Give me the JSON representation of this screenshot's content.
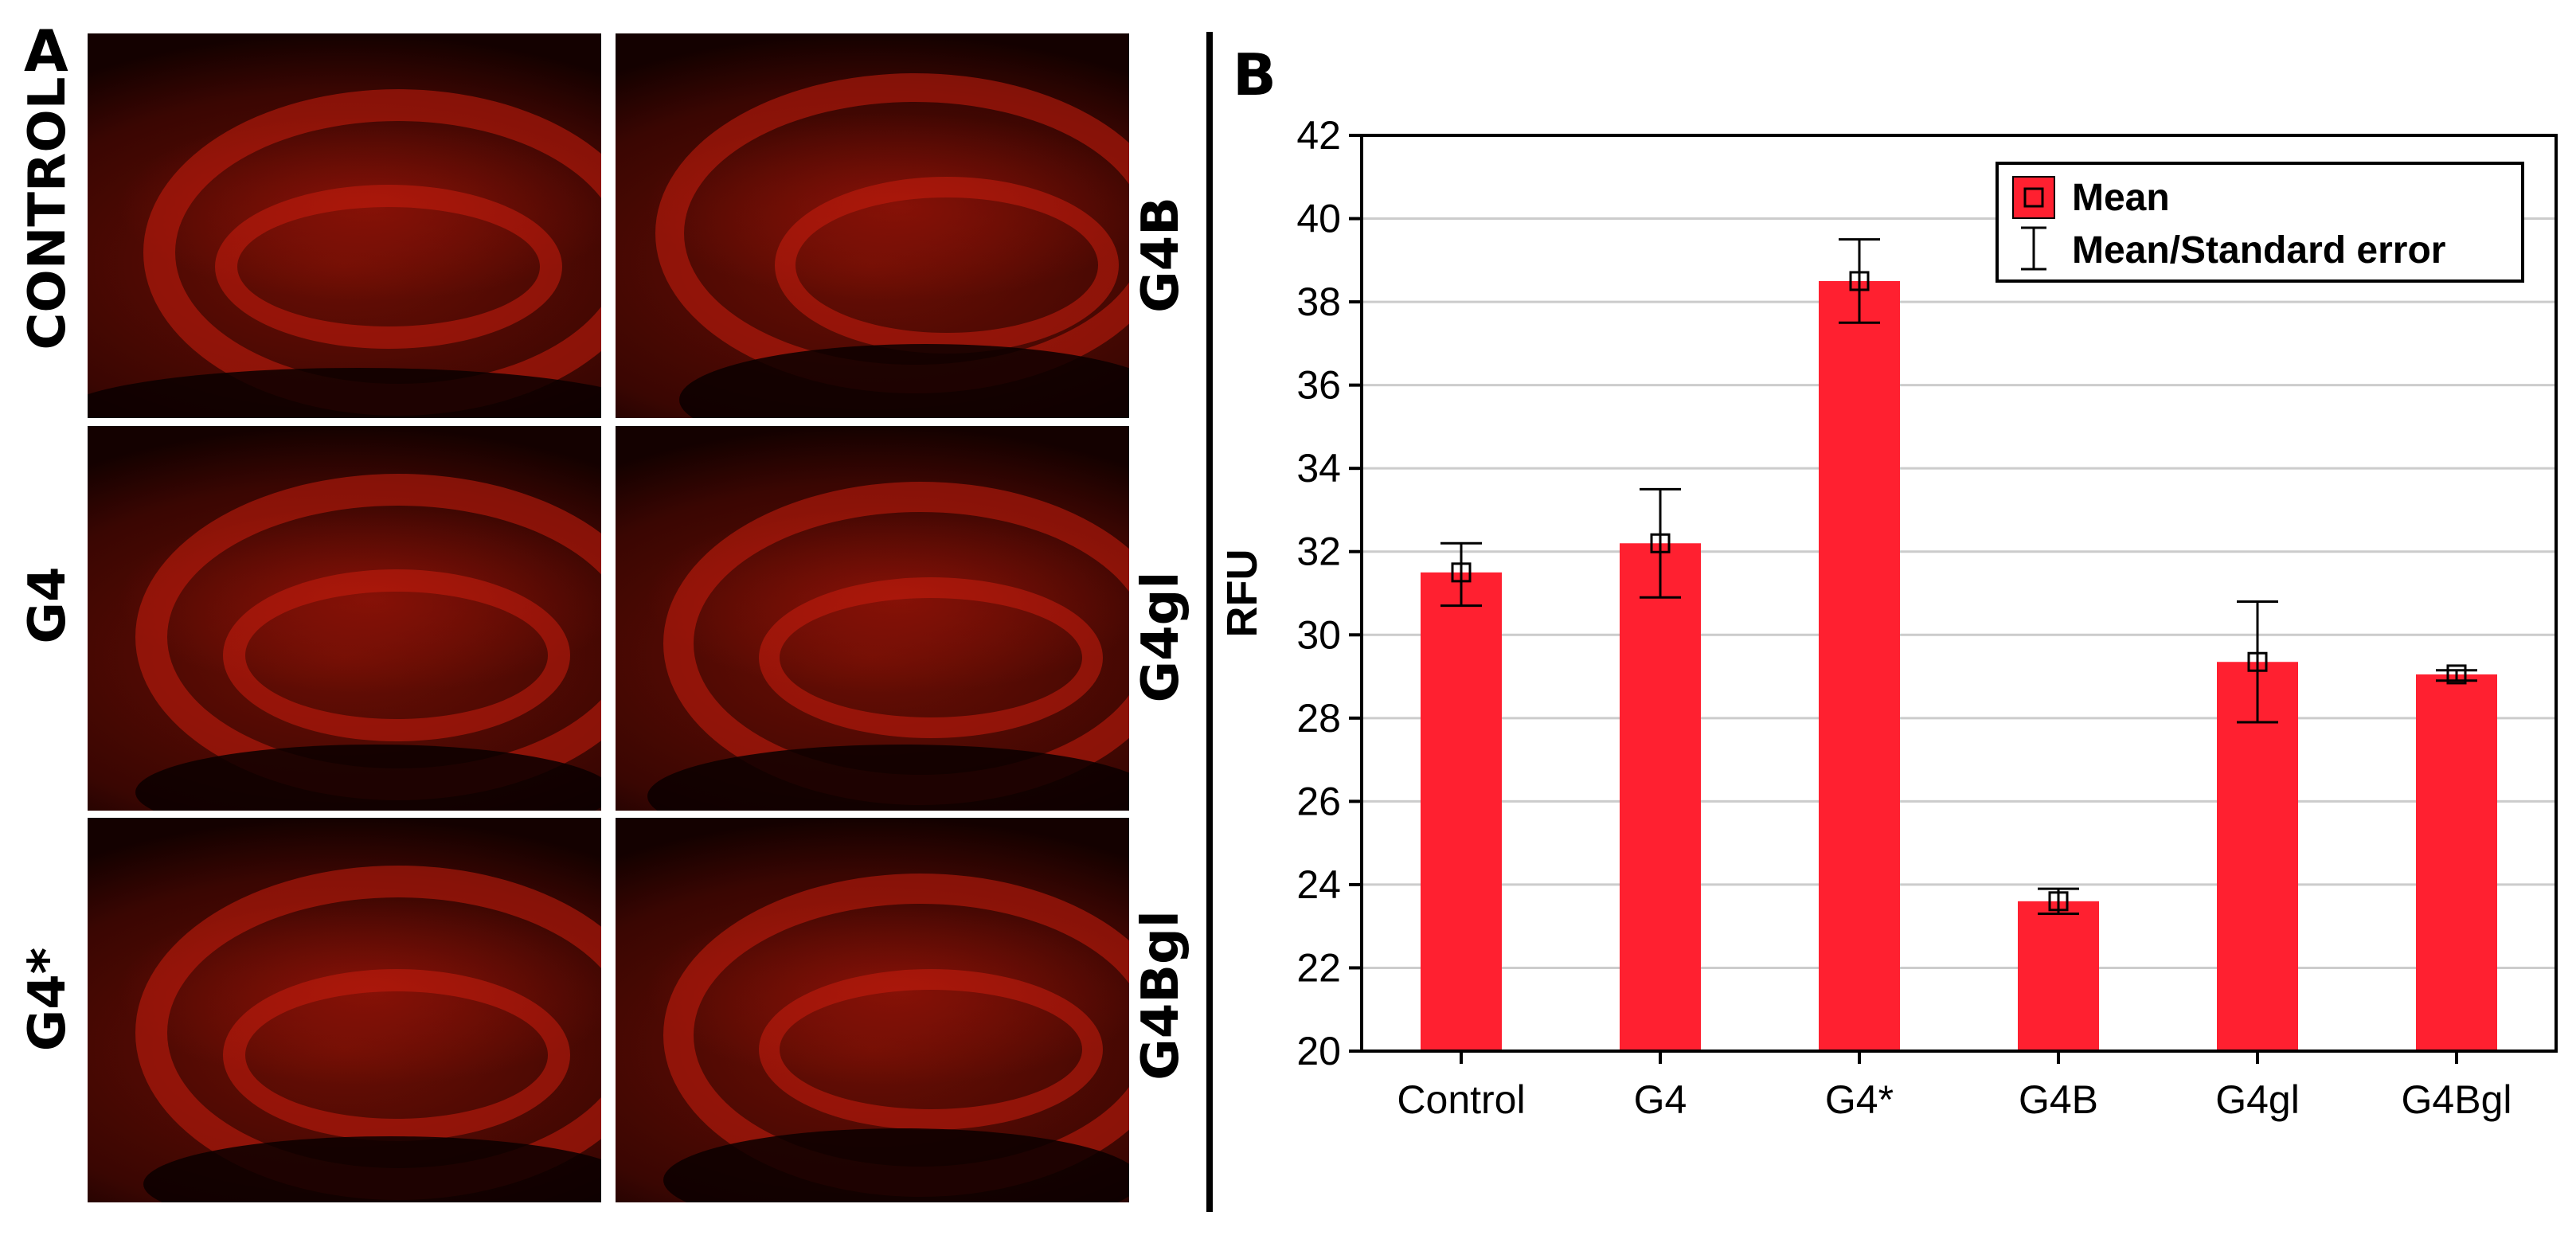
{
  "panel_a": {
    "letter": "A",
    "left_labels": [
      "CONTROL",
      "G4",
      "G4*"
    ],
    "right_labels": [
      "G4B",
      "G4gl",
      "G4Bgl"
    ]
  },
  "panel_b": {
    "letter": "B"
  },
  "colors": {
    "bar": "#ff2030",
    "grid": "#cccccc",
    "axis": "#000000"
  },
  "chart_data": {
    "type": "bar",
    "title": "",
    "xlabel": "",
    "ylabel": "RFU",
    "categories": [
      "Control",
      "G4",
      "G4*",
      "G4B",
      "G4gl",
      "G4Bgl"
    ],
    "values": [
      31.5,
      32.2,
      38.5,
      23.6,
      29.35,
      29.05
    ],
    "error_low": [
      30.7,
      30.9,
      37.5,
      23.3,
      27.9,
      28.9
    ],
    "error_high": [
      32.2,
      33.5,
      39.5,
      23.9,
      30.8,
      29.15
    ],
    "ylim": [
      20,
      42
    ],
    "yticks": [
      20,
      22,
      24,
      26,
      28,
      30,
      32,
      34,
      36,
      38,
      40,
      42
    ],
    "grid": true,
    "legend": {
      "placement": "top-right",
      "entries": [
        "Mean",
        "Mean/Standard error"
      ]
    }
  }
}
